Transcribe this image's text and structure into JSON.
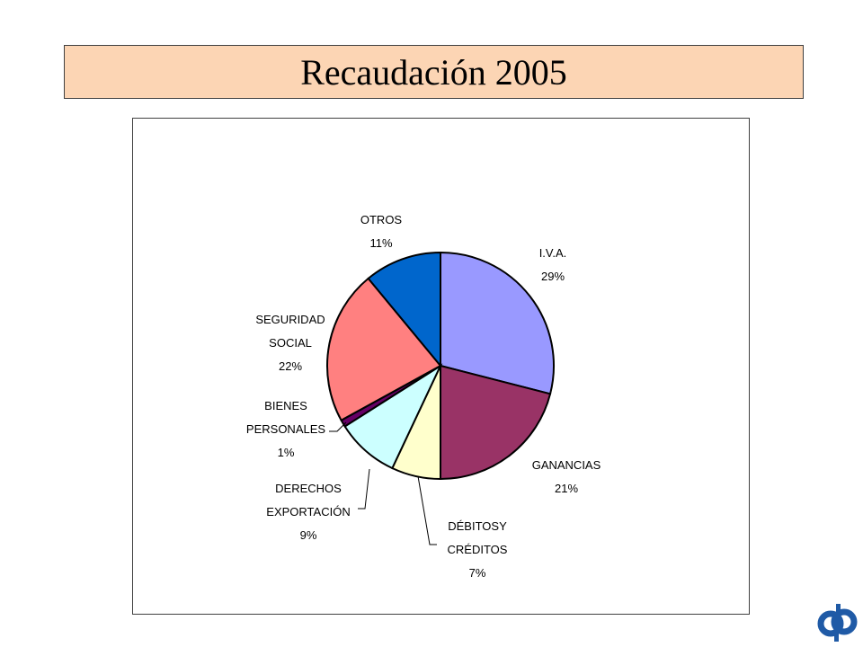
{
  "title": "Recaudación 2005",
  "chart_data": {
    "type": "pie",
    "slices": [
      {
        "label_lines": [
          "I.V.A."
        ],
        "pct_label": "29%",
        "value": 29,
        "color": "#9999ff"
      },
      {
        "label_lines": [
          "GANANCIAS"
        ],
        "pct_label": "21%",
        "value": 21,
        "color": "#993366"
      },
      {
        "label_lines": [
          "DÉBITOSY",
          "CRÉDITOS"
        ],
        "pct_label": "7%",
        "value": 7,
        "color": "#ffffcc"
      },
      {
        "label_lines": [
          "DERECHOS",
          "EXPORTACIÓN"
        ],
        "pct_label": "9%",
        "value": 9,
        "color": "#ccffff"
      },
      {
        "label_lines": [
          "BIENES",
          "PERSONALES"
        ],
        "pct_label": "1%",
        "value": 1,
        "color": "#660066"
      },
      {
        "label_lines": [
          "SEGURIDAD",
          "SOCIAL"
        ],
        "pct_label": "22%",
        "value": 22,
        "color": "#ff8080"
      },
      {
        "label_lines": [
          "OTROS"
        ],
        "pct_label": "11%",
        "value": 11,
        "color": "#0066cc"
      }
    ]
  },
  "logo": {
    "text": "dp",
    "color": "#1f5aa6"
  }
}
